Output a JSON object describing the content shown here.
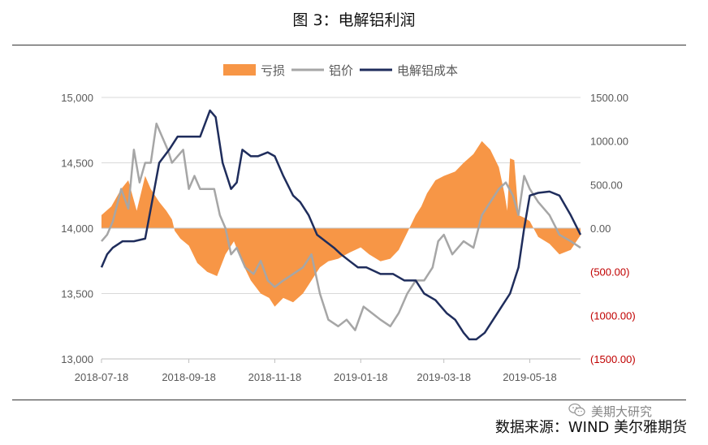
{
  "title": "图 3：电解铝利润",
  "source": "数据来源：WIND  美尔雅期货",
  "watermark": "美期大研究",
  "colors": {
    "loss": "#F79646",
    "price": "#A6A6A6",
    "cost": "#1F2D5C",
    "axis_text": "#595959",
    "negative_text": "#C00000",
    "grid": "#D9D9D9"
  },
  "chart_data": {
    "type": "line",
    "legend_position": "top",
    "grid": true,
    "x_ticks": [
      "2018-07-18",
      "2018-09-18",
      "2018-11-18",
      "2019-01-18",
      "2019-03-18",
      "2019-05-18"
    ],
    "y_left": {
      "ticks": [
        "15,000",
        "14,500",
        "14,000",
        "13,500",
        "13,000"
      ],
      "range": [
        13000,
        15000
      ]
    },
    "y_right": {
      "ticks": [
        "1500.00",
        "1000.00",
        "500.00",
        "0.00",
        "(500.00)",
        "(1000.00)",
        "(1500.00)"
      ],
      "range": [
        -1500,
        1500
      ]
    },
    "x_range": [
      "2018-07-18",
      "2019-06-23"
    ],
    "series": [
      {
        "name": "亏损",
        "kind": "area",
        "axis": "right",
        "x": [
          "2018-07-18",
          "2018-07-25",
          "2018-08-01",
          "2018-08-06",
          "2018-08-12",
          "2018-08-18",
          "2018-08-22",
          "2018-08-28",
          "2018-09-02",
          "2018-09-06",
          "2018-09-08",
          "2018-09-12",
          "2018-09-18",
          "2018-09-24",
          "2018-10-01",
          "2018-10-08",
          "2018-10-14",
          "2018-10-20",
          "2018-10-26",
          "2018-11-01",
          "2018-11-08",
          "2018-11-14",
          "2018-11-18",
          "2018-11-24",
          "2018-12-01",
          "2018-12-08",
          "2018-12-14",
          "2018-12-20",
          "2018-12-26",
          "2019-01-02",
          "2019-01-10",
          "2019-01-18",
          "2019-01-24",
          "2019-02-01",
          "2019-02-08",
          "2019-02-14",
          "2019-02-20",
          "2019-02-26",
          "2019-03-02",
          "2019-03-06",
          "2019-03-12",
          "2019-03-18",
          "2019-03-26",
          "2019-04-01",
          "2019-04-08",
          "2019-04-14",
          "2019-04-20",
          "2019-04-26",
          "2019-04-30",
          "2019-05-02",
          "2019-05-04",
          "2019-05-07",
          "2019-05-10",
          "2019-05-14",
          "2019-05-18",
          "2019-05-24",
          "2019-06-01",
          "2019-06-08",
          "2019-06-16",
          "2019-06-23"
        ],
        "values": [
          150,
          250,
          450,
          550,
          200,
          600,
          450,
          300,
          200,
          100,
          -30,
          -120,
          -200,
          -400,
          -500,
          -550,
          -300,
          -150,
          -400,
          -600,
          -750,
          -800,
          -900,
          -800,
          -850,
          -750,
          -600,
          -450,
          -380,
          -350,
          -280,
          -220,
          -300,
          -380,
          -350,
          -250,
          -50,
          150,
          250,
          400,
          550,
          600,
          650,
          750,
          850,
          1000,
          900,
          700,
          400,
          200,
          800,
          780,
          150,
          120,
          80,
          -100,
          -180,
          -300,
          -250,
          -80
        ]
      },
      {
        "name": "铝价",
        "kind": "line",
        "axis": "left",
        "x": [
          "2018-07-18",
          "2018-07-22",
          "2018-07-26",
          "2018-08-01",
          "2018-08-06",
          "2018-08-10",
          "2018-08-14",
          "2018-08-18",
          "2018-08-22",
          "2018-08-26",
          "2018-08-30",
          "2018-09-03",
          "2018-09-06",
          "2018-09-10",
          "2018-09-14",
          "2018-09-18",
          "2018-09-22",
          "2018-09-26",
          "2018-10-01",
          "2018-10-06",
          "2018-10-10",
          "2018-10-14",
          "2018-10-18",
          "2018-10-22",
          "2018-10-28",
          "2018-11-03",
          "2018-11-08",
          "2018-11-13",
          "2018-11-18",
          "2018-11-24",
          "2018-12-01",
          "2018-12-08",
          "2018-12-14",
          "2018-12-20",
          "2018-12-26",
          "2019-01-02",
          "2019-01-08",
          "2019-01-14",
          "2019-01-20",
          "2019-01-26",
          "2019-02-01",
          "2019-02-08",
          "2019-02-14",
          "2019-02-20",
          "2019-02-26",
          "2019-03-04",
          "2019-03-10",
          "2019-03-14",
          "2019-03-18",
          "2019-03-24",
          "2019-04-01",
          "2019-04-08",
          "2019-04-14",
          "2019-04-20",
          "2019-04-26",
          "2019-05-01",
          "2019-05-06",
          "2019-05-10",
          "2019-05-14",
          "2019-05-18",
          "2019-05-24",
          "2019-06-01",
          "2019-06-08",
          "2019-06-16",
          "2019-06-23"
        ],
        "values": [
          13900,
          13950,
          14050,
          14300,
          14150,
          14600,
          14350,
          14500,
          14500,
          14800,
          14700,
          14600,
          14500,
          14550,
          14600,
          14300,
          14400,
          14300,
          14300,
          14300,
          14100,
          14000,
          13800,
          13850,
          13700,
          13650,
          13750,
          13600,
          13550,
          13600,
          13650,
          13700,
          13800,
          13500,
          13300,
          13250,
          13300,
          13220,
          13400,
          13350,
          13300,
          13250,
          13350,
          13500,
          13600,
          13600,
          13700,
          13900,
          13950,
          13800,
          13900,
          13850,
          14100,
          14200,
          14300,
          14350,
          14250,
          14100,
          14400,
          14300,
          14200,
          14100,
          13950,
          13900,
          13850
        ]
      },
      {
        "name": "电解铝成本",
        "kind": "line",
        "axis": "left",
        "x": [
          "2018-07-18",
          "2018-07-22",
          "2018-07-26",
          "2018-08-02",
          "2018-08-10",
          "2018-08-18",
          "2018-08-22",
          "2018-08-28",
          "2018-09-04",
          "2018-09-10",
          "2018-09-18",
          "2018-09-26",
          "2018-10-03",
          "2018-10-07",
          "2018-10-12",
          "2018-10-18",
          "2018-10-22",
          "2018-10-26",
          "2018-11-01",
          "2018-11-06",
          "2018-11-13",
          "2018-11-18",
          "2018-11-24",
          "2018-12-01",
          "2018-12-06",
          "2018-12-12",
          "2018-12-18",
          "2018-12-24",
          "2018-12-30",
          "2019-01-04",
          "2019-01-10",
          "2019-01-16",
          "2019-01-22",
          "2019-02-01",
          "2019-02-10",
          "2019-02-18",
          "2019-02-26",
          "2019-03-04",
          "2019-03-12",
          "2019-03-20",
          "2019-03-26",
          "2019-04-01",
          "2019-04-05",
          "2019-04-10",
          "2019-04-16",
          "2019-04-22",
          "2019-04-28",
          "2019-05-04",
          "2019-05-10",
          "2019-05-14",
          "2019-05-18",
          "2019-05-24",
          "2019-06-01",
          "2019-06-08",
          "2019-06-16",
          "2019-06-23"
        ],
        "values": [
          13700,
          13800,
          13850,
          13900,
          13900,
          13920,
          14150,
          14500,
          14600,
          14700,
          14700,
          14700,
          14900,
          14850,
          14500,
          14300,
          14350,
          14600,
          14550,
          14550,
          14580,
          14550,
          14400,
          14250,
          14200,
          14100,
          13950,
          13900,
          13850,
          13800,
          13750,
          13700,
          13700,
          13650,
          13650,
          13600,
          13600,
          13500,
          13450,
          13350,
          13300,
          13200,
          13150,
          13150,
          13200,
          13300,
          13400,
          13500,
          13700,
          14000,
          14250,
          14270,
          14280,
          14250,
          14100,
          13950
        ]
      }
    ]
  }
}
